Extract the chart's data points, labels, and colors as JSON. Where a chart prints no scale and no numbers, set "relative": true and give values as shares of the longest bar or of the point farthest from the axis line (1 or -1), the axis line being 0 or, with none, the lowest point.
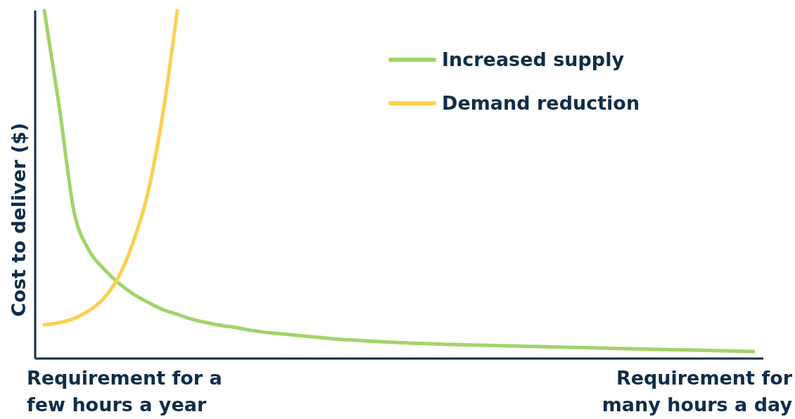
{
  "chart_data": {
    "type": "line",
    "relative": true,
    "ylabel": "Cost to deliver ($)",
    "categories": [
      null,
      null,
      null,
      null,
      null,
      null,
      null,
      null,
      null,
      null,
      null,
      null,
      null,
      null,
      null,
      null,
      null,
      null,
      null,
      null,
      null,
      null,
      null,
      null,
      null,
      null,
      null,
      null,
      null,
      null,
      null,
      null,
      null,
      null,
      null,
      null,
      null,
      null,
      null,
      null,
      null,
      null,
      null,
      null,
      null,
      null,
      null,
      null,
      null
    ],
    "series": [
      {
        "name": "Increased supply",
        "color": "#a3d36a",
        "values": [
          1.0,
          0.727,
          0.424,
          0.313,
          0.259,
          0.218,
          0.186,
          0.162,
          0.141,
          0.127,
          0.113,
          0.103,
          0.095,
          0.089,
          0.081,
          0.075,
          0.071,
          0.067,
          0.063,
          0.059,
          0.055,
          0.053,
          0.05,
          0.048,
          0.046,
          0.044,
          0.043,
          0.041,
          0.04,
          0.039,
          0.038,
          0.037,
          0.036,
          0.035,
          0.034,
          0.033,
          0.032,
          0.031,
          0.03,
          0.029,
          0.028,
          0.027,
          0.026,
          0.025,
          0.024,
          0.023,
          0.022,
          0.021,
          0.02
        ]
      },
      {
        "name": "Demand reduction",
        "color": "#fcd04f",
        "values": [
          0.097,
          0.103,
          0.115,
          0.137,
          0.172,
          0.232,
          0.333,
          0.475,
          0.697,
          1.0,
          null,
          null,
          null,
          null,
          null,
          null,
          null,
          null,
          null,
          null,
          null,
          null,
          null,
          null,
          null,
          null,
          null,
          null,
          null,
          null,
          null,
          null,
          null,
          null,
          null,
          null,
          null,
          null,
          null,
          null,
          null,
          null,
          null,
          null,
          null,
          null,
          null,
          null,
          null
        ]
      }
    ],
    "legend": "top",
    "annotations": [
      "Requirement for a few hours a year",
      "Requirement for many hours a day"
    ]
  }
}
